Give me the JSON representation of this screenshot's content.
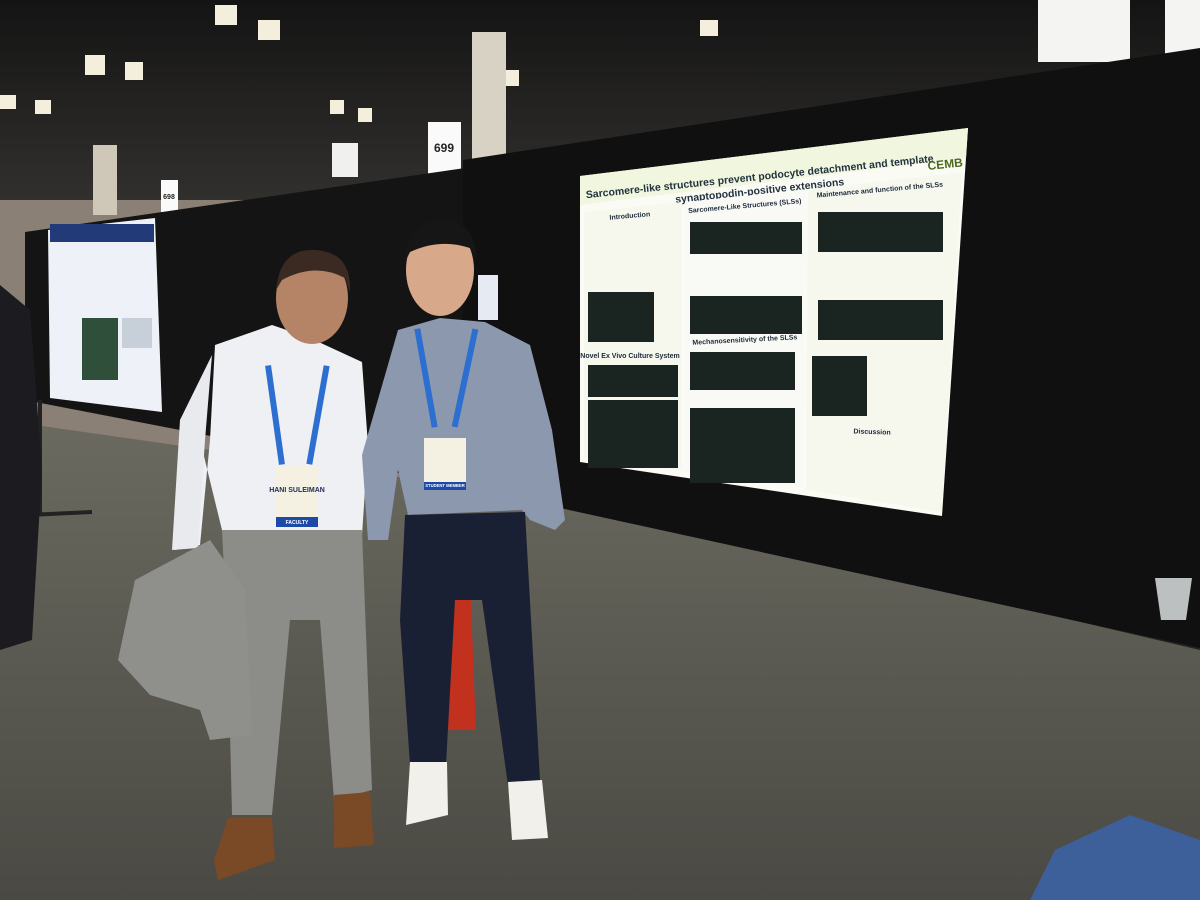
{
  "booth_signs": [
    "699",
    "698"
  ],
  "poster": {
    "title_lines": [
      "Sarcomere-like structures prevent podocyte detachment and template",
      "synaptopodin-positive extensions"
    ],
    "logo": "CEMB",
    "sections": [
      "Introduction",
      "Sarcomere-Like Structures (SLSs)",
      "Maintenance and function of the SLSs",
      "Mechanosensitivity of the SLSs",
      "Novel Ex Vivo Culture System",
      "Discussion"
    ]
  },
  "badges": [
    {
      "name": "HANI SULEIMAN",
      "role": "FACULTY"
    },
    {
      "role": "STUDENT MEMBER"
    }
  ]
}
